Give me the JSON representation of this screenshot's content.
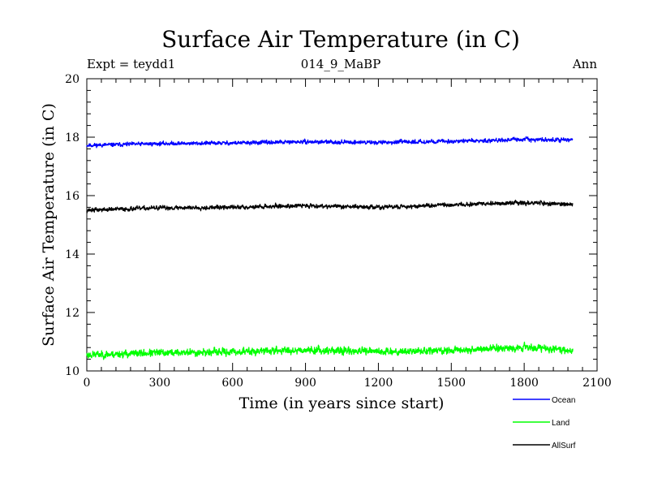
{
  "chart_data": {
    "type": "line",
    "title": "Surface Air Temperature (in C)",
    "subtitle": "014_9_MaBP",
    "experiment_label": "Expt = teydd1",
    "season_label": "Ann",
    "xlabel": "Time (in years since start)",
    "ylabel": "Surface Air Temperature (in C)",
    "xlim": [
      0,
      2100
    ],
    "ylim": [
      10,
      20
    ],
    "xticks": [
      0,
      300,
      600,
      900,
      1200,
      1500,
      1800,
      2100
    ],
    "xtick_labels": [
      "0",
      "300",
      "600",
      "900",
      "1200",
      "1500",
      "1800",
      "2100"
    ],
    "yticks": [
      10,
      12,
      14,
      16,
      18,
      20
    ],
    "ytick_labels": [
      "10",
      "12",
      "14",
      "16",
      "18",
      "20"
    ],
    "x_minor_step": 60,
    "y_minor_step": 0.4,
    "x_range": [
      0,
      2000
    ],
    "series": [
      {
        "name": "Ocean",
        "color": "#0000ff",
        "trend": [
          [
            0,
            17.72
          ],
          [
            300,
            17.78
          ],
          [
            600,
            17.8
          ],
          [
            900,
            17.84
          ],
          [
            1200,
            17.82
          ],
          [
            1500,
            17.86
          ],
          [
            1800,
            17.92
          ],
          [
            2000,
            17.9
          ]
        ],
        "noise": 0.09,
        "seed": 11
      },
      {
        "name": "Land",
        "color": "#00ff00",
        "trend": [
          [
            0,
            10.55
          ],
          [
            300,
            10.62
          ],
          [
            600,
            10.65
          ],
          [
            900,
            10.72
          ],
          [
            1200,
            10.66
          ],
          [
            1500,
            10.7
          ],
          [
            1800,
            10.82
          ],
          [
            2000,
            10.7
          ]
        ],
        "noise": 0.17,
        "seed": 23
      },
      {
        "name": "AllSurf",
        "color": "#000000",
        "trend": [
          [
            0,
            15.5
          ],
          [
            300,
            15.58
          ],
          [
            600,
            15.6
          ],
          [
            900,
            15.66
          ],
          [
            1200,
            15.6
          ],
          [
            1500,
            15.68
          ],
          [
            1800,
            15.76
          ],
          [
            2000,
            15.7
          ]
        ],
        "noise": 0.1,
        "seed": 37
      }
    ]
  }
}
